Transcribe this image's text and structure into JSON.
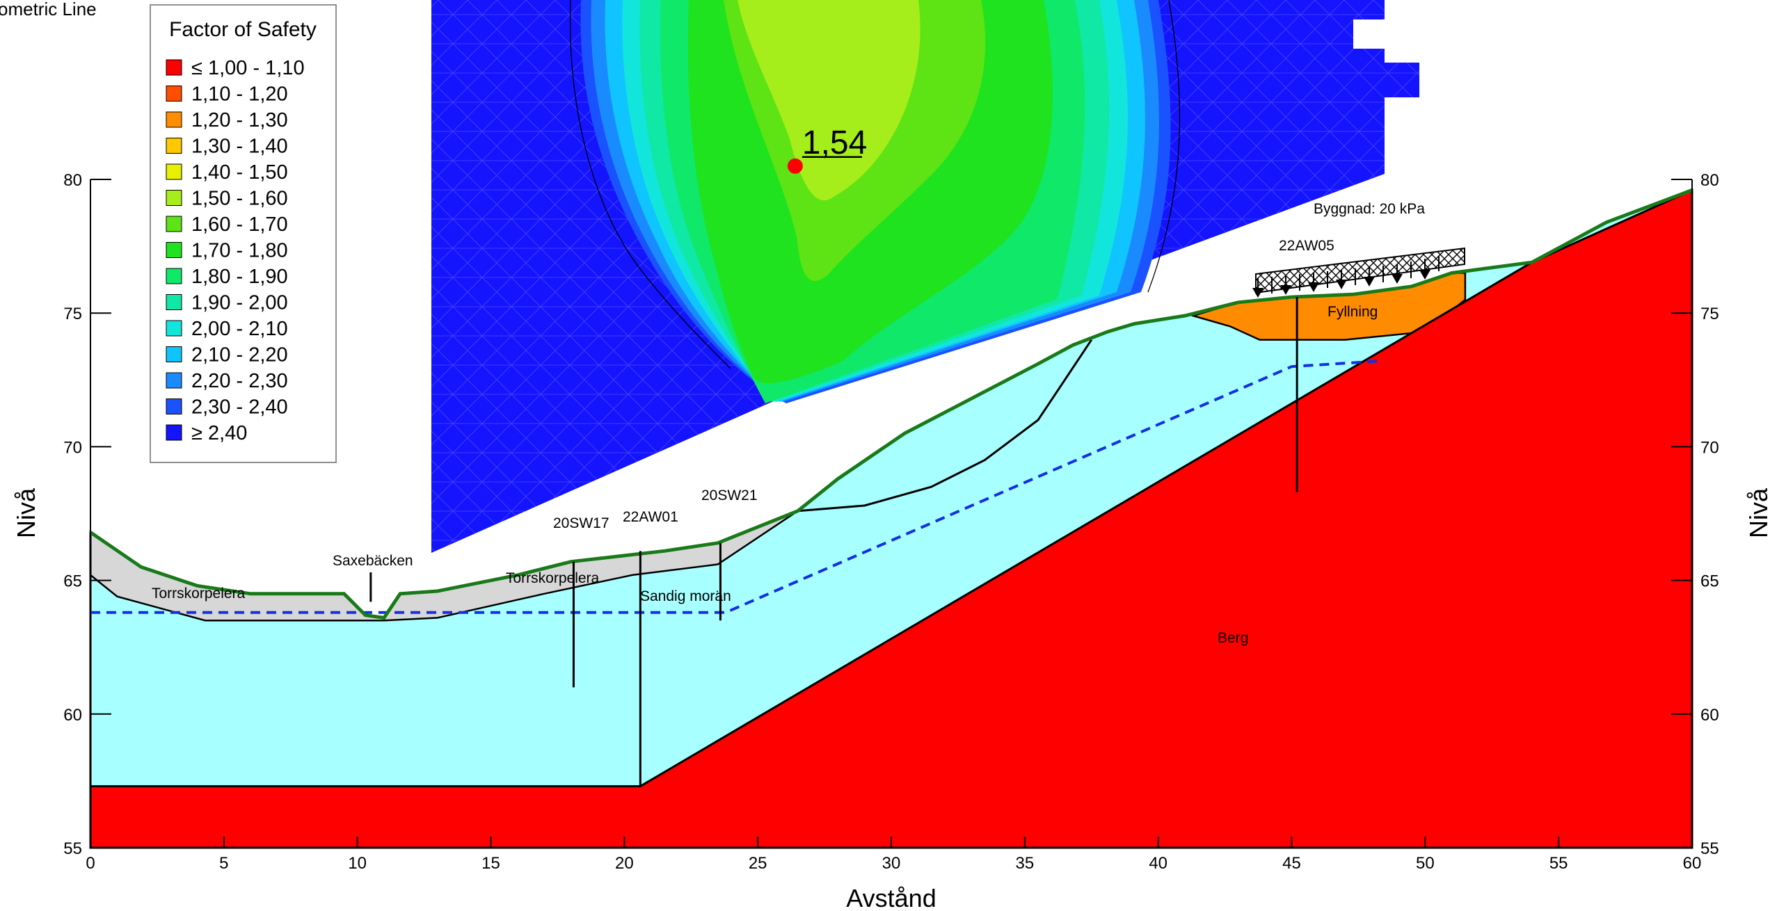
{
  "title_clipped": "ometric Line",
  "legend": {
    "title": "Factor of Safety",
    "items": [
      {
        "label": "≤ 1,00 - 1,10",
        "color": "#ff0000"
      },
      {
        "label": "1,10 - 1,20",
        "color": "#ff4e00"
      },
      {
        "label": "1,20 - 1,30",
        "color": "#ff8d00"
      },
      {
        "label": "1,30 - 1,40",
        "color": "#ffc800"
      },
      {
        "label": "1,40 - 1,50",
        "color": "#e6f000"
      },
      {
        "label": "1,50 - 1,60",
        "color": "#a6ed1c"
      },
      {
        "label": "1,60 - 1,70",
        "color": "#5ee314"
      },
      {
        "label": "1,70 - 1,80",
        "color": "#1ee31e"
      },
      {
        "label": "1,80 - 1,90",
        "color": "#10e86a"
      },
      {
        "label": "1,90 - 2,00",
        "color": "#10e8a6"
      },
      {
        "label": "2,00 - 2,10",
        "color": "#12e6dc"
      },
      {
        "label": "2,10 - 2,20",
        "color": "#10c4ff"
      },
      {
        "label": "2,20 - 2,30",
        "color": "#1a8bff"
      },
      {
        "label": "2,30 - 2,40",
        "color": "#1a52ff"
      },
      {
        "label": "≥ 2,40",
        "color": "#1414ff"
      }
    ]
  },
  "critical": {
    "label": "1,54",
    "x": 26.4,
    "y": 80.5
  },
  "axes": {
    "x_title": "Avstånd",
    "y_title_left": "Nivå",
    "y_title_right": "Nivå",
    "x_ticks": [
      "0",
      "5",
      "10",
      "15",
      "20",
      "25",
      "30",
      "35",
      "40",
      "45",
      "50",
      "55",
      "60"
    ],
    "y_ticks": [
      "55",
      "60",
      "65",
      "70",
      "75",
      "80"
    ],
    "xlim": [
      0,
      60
    ],
    "ylim": [
      55,
      80
    ]
  },
  "labels": {
    "torrskorpelera_1": "Torrskorpelera",
    "torrskorpelera_2": "Torrskorpelera",
    "saxebacken": "Saxebäcken",
    "sandig_moran": "Sandig morän",
    "sw17": "20SW17",
    "aw01": "22AW01",
    "sw21": "20SW21",
    "aw05": "22AW05",
    "byggnad": "Byggnad: 20 kPa",
    "fyllning": "Fyllning",
    "berg": "Berg"
  },
  "colors": {
    "berg": "#ff0000",
    "clay": "#a7ffff",
    "crust": "#d7d7d7",
    "fill": "#ff8c00",
    "ground_line": "#1a7a1a",
    "piezometric": "#1430e0",
    "grid_background": "#1414ff",
    "critical_point": "#ff0000"
  },
  "geometry": {
    "ground_surface": [
      [
        0,
        66.8
      ],
      [
        1.9,
        65.5
      ],
      [
        4,
        64.8
      ],
      [
        6,
        64.5
      ],
      [
        9.5,
        64.5
      ],
      [
        10.3,
        63.7
      ],
      [
        11,
        63.6
      ],
      [
        11.6,
        64.5
      ],
      [
        13,
        64.6
      ],
      [
        16,
        65.2
      ],
      [
        18,
        65.7
      ],
      [
        21.5,
        66.1
      ],
      [
        23.5,
        66.4
      ],
      [
        26.5,
        67.6
      ],
      [
        28,
        68.8
      ],
      [
        30.5,
        70.5
      ],
      [
        33,
        71.8
      ],
      [
        35.5,
        73.1
      ],
      [
        36.8,
        73.8
      ],
      [
        38.1,
        74.3
      ],
      [
        39.1,
        74.6
      ],
      [
        41,
        74.9
      ],
      [
        43,
        75.4
      ],
      [
        45,
        75.6
      ],
      [
        47.3,
        75.7
      ],
      [
        49.5,
        76
      ],
      [
        51,
        76.5
      ],
      [
        54,
        76.9
      ],
      [
        56.8,
        78.4
      ],
      [
        60,
        79.6
      ]
    ],
    "crust_bottom": [
      [
        0,
        65.2
      ],
      [
        1,
        64.4
      ],
      [
        4.3,
        63.5
      ],
      [
        11,
        63.5
      ],
      [
        13,
        63.6
      ],
      [
        17,
        64.5
      ],
      [
        20.3,
        65.2
      ],
      [
        23.5,
        65.6
      ],
      [
        26.5,
        67.6
      ]
    ],
    "rock_surface": [
      [
        0,
        57.3
      ],
      [
        20.6,
        57.3
      ],
      [
        54,
        76.9
      ],
      [
        60,
        79.6
      ]
    ],
    "fill_bottom": [
      [
        41.3,
        74.9
      ],
      [
        42.7,
        74.5
      ],
      [
        43.8,
        74
      ],
      [
        47,
        74
      ],
      [
        50,
        74.3
      ],
      [
        51.5,
        75.5
      ]
    ],
    "piezometric_line": [
      [
        0,
        63.8
      ],
      [
        23.8,
        63.8
      ],
      [
        45,
        73
      ],
      [
        48.2,
        73.2
      ]
    ],
    "slip_surface": [
      [
        26.5,
        67.6
      ],
      [
        29,
        67.8
      ],
      [
        31.5,
        68.5
      ],
      [
        33.5,
        69.5
      ],
      [
        35.5,
        71
      ],
      [
        37.5,
        74
      ]
    ],
    "boreholes": [
      {
        "x": 18.1,
        "top": 65.7,
        "bottom": 61
      },
      {
        "x": 20.6,
        "top": 66.1,
        "bottom": 57.3
      },
      {
        "x": 23.6,
        "top": 66.4,
        "bottom": 63.5
      },
      {
        "x": 45.2,
        "top": 75.6,
        "bottom": 68.3
      }
    ],
    "channel_marker": {
      "x": 10.5,
      "top": 65.3,
      "bottom": 64.2
    }
  }
}
